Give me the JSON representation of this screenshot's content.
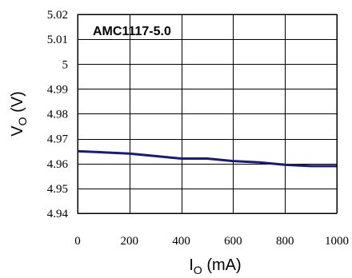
{
  "chart_data": {
    "type": "line",
    "title": "AMC1117-5.0",
    "xlabel": "I",
    "xlabel_sub": "O",
    "xlabel_unit": " (mA)",
    "ylabel": "V",
    "ylabel_sub": "O",
    "ylabel_unit": " (V)",
    "xlim": [
      0,
      1000
    ],
    "ylim": [
      4.94,
      5.02
    ],
    "x_ticks": [
      0,
      200,
      400,
      600,
      800,
      1000
    ],
    "x_tick_labels": [
      "0",
      "200",
      "400",
      "600",
      "800",
      "1000"
    ],
    "y_ticks": [
      4.94,
      4.95,
      4.96,
      4.97,
      4.98,
      4.99,
      5.0,
      5.01,
      5.02
    ],
    "y_tick_labels": [
      "4.94",
      "4.95",
      "4.96",
      "4.97",
      "4.98",
      "4.99",
      "5",
      "5.01",
      "5.02"
    ],
    "grid": true,
    "series": [
      {
        "color": "#1a1a7a",
        "x": [
          0,
          100,
          200,
          300,
          400,
          500,
          600,
          700,
          800,
          900,
          1000
        ],
        "y": [
          4.965,
          4.9645,
          4.964,
          4.963,
          4.962,
          4.962,
          4.961,
          4.9605,
          4.9595,
          4.959,
          4.959
        ]
      }
    ]
  }
}
